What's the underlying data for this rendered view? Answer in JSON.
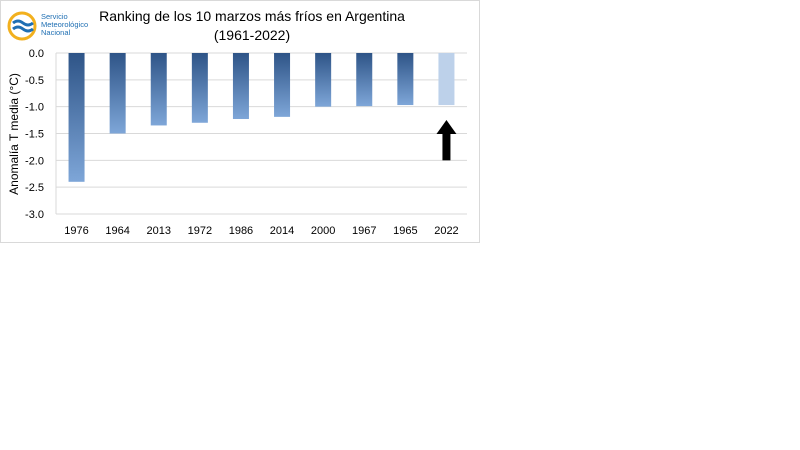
{
  "logo": {
    "line1": "Servicio",
    "line2": "Meteorológico",
    "line3": "Nacional",
    "icon": "smn-logo-icon",
    "colors": {
      "blue": "#1f6fb3",
      "yellow": "#f2b01e"
    }
  },
  "chart_data": {
    "type": "bar",
    "title": "Ranking de los 10 marzos más fríos en Argentina",
    "subtitle": "(1961-2022)",
    "xlabel": "",
    "ylabel": "Anomalía T media (°C)",
    "categories": [
      "1976",
      "1964",
      "2013",
      "1972",
      "1986",
      "2014",
      "2000",
      "1967",
      "1965",
      "2022"
    ],
    "values": [
      -2.4,
      -1.5,
      -1.35,
      -1.3,
      -1.23,
      -1.19,
      -1.0,
      -0.99,
      -0.97,
      -0.97
    ],
    "ylim": [
      -3.0,
      0.0
    ],
    "yticks": [
      "0.0",
      "-0.5",
      "-1.0",
      "-1.5",
      "-2.0",
      "-2.5",
      "-3.0"
    ],
    "grid": true,
    "colors": {
      "bar_top": "#2e5487",
      "bar_bottom": "#7ea6d8",
      "highlight": "#bdd1ea",
      "arrow": "#000000",
      "grid": "#d9d9d9"
    },
    "highlight_category": "2022",
    "annotation": "arrow-up"
  }
}
